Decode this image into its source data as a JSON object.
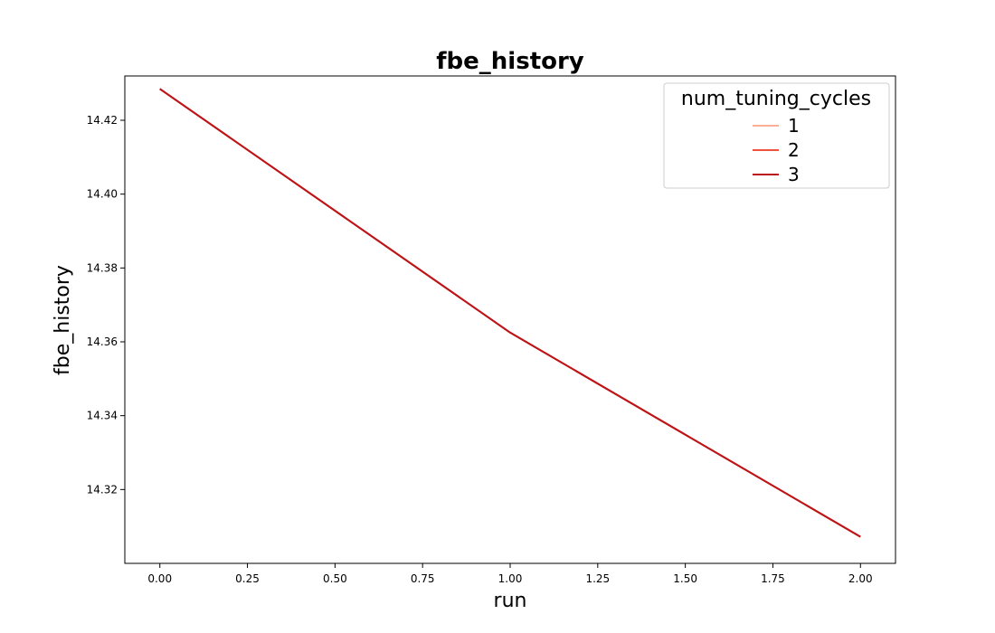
{
  "chart_data": {
    "type": "line",
    "title": "fbe_history",
    "xlabel": "run",
    "ylabel": "fbe_history",
    "xlim": [
      -0.1,
      2.1
    ],
    "ylim": [
      14.3,
      14.432
    ],
    "x_ticks": [
      "0.00",
      "0.25",
      "0.50",
      "0.75",
      "1.00",
      "1.25",
      "1.50",
      "1.75",
      "2.00"
    ],
    "y_ticks": [
      "14.32",
      "14.34",
      "14.36",
      "14.38",
      "14.40",
      "14.42"
    ],
    "grid": false,
    "legend": {
      "title": "num_tuning_cycles",
      "placement": "upper-right"
    },
    "x": [
      0,
      1,
      2
    ],
    "series": [
      {
        "name": "1",
        "color": "#fcaf93",
        "values": [
          14.4285,
          14.3625,
          14.3072
        ]
      },
      {
        "name": "2",
        "color": "#f0523e",
        "values": [
          14.4285,
          14.3625,
          14.3072
        ]
      },
      {
        "name": "3",
        "color": "#bb1419",
        "values": [
          14.4285,
          14.3625,
          14.3072
        ]
      }
    ]
  }
}
